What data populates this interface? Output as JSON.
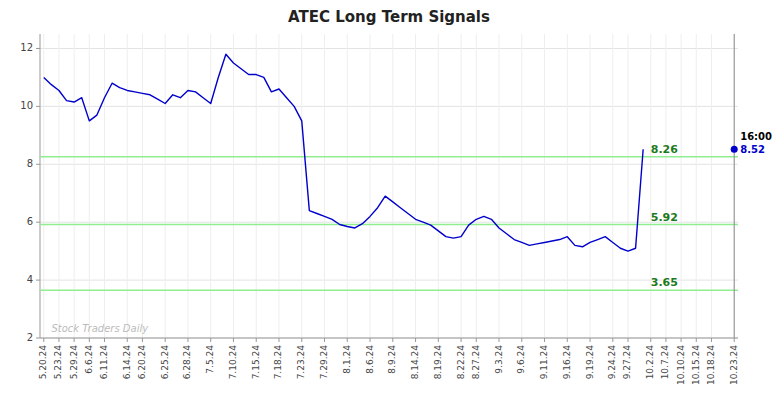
{
  "chart_data": {
    "type": "line",
    "title": "ATEC Long Term Signals",
    "categories": [
      "5.20.24",
      null,
      "5.23.24",
      null,
      "5.29.24",
      null,
      "6.6.24",
      null,
      "6.11.24",
      null,
      null,
      "6.14.24",
      null,
      "6.20.24",
      null,
      null,
      "6.25.24",
      null,
      null,
      "6.28.24",
      null,
      null,
      "7.5.24",
      null,
      null,
      "7.10.24",
      null,
      null,
      "7.15.24",
      null,
      null,
      "7.18.24",
      null,
      null,
      "7.23.24",
      null,
      null,
      "7.29.24",
      null,
      null,
      "8.1.24",
      null,
      null,
      "8.6.24",
      null,
      null,
      "8.9.24",
      null,
      null,
      "8.14.24",
      null,
      null,
      "8.19.24",
      null,
      null,
      "8.22.24",
      null,
      "8.27.24",
      null,
      null,
      "9.3.24",
      null,
      null,
      "9.6.24",
      null,
      null,
      "9.11.24",
      null,
      null,
      "9.16.24",
      null,
      null,
      "9.19.24",
      null,
      null,
      "9.24.24",
      null,
      "9.27.24",
      null,
      null,
      "10.2.24",
      null,
      "10.7.24",
      null,
      "10.10.24",
      null,
      "10.15.24",
      null,
      "10.18.24",
      null,
      null,
      "10.23.24"
    ],
    "series": [
      {
        "color": "#0000cc",
        "values": [
          11.0,
          10.75,
          10.55,
          10.2,
          10.15,
          10.3,
          9.5,
          9.7,
          10.3,
          10.8,
          10.65,
          10.55,
          10.5,
          10.45,
          10.4,
          10.25,
          10.1,
          10.4,
          10.3,
          10.55,
          10.5,
          10.3,
          10.1,
          11.0,
          11.8,
          11.5,
          11.3,
          11.1,
          11.1,
          11.0,
          10.5,
          10.6,
          10.3,
          10.0,
          9.5,
          6.4,
          6.3,
          6.2,
          6.1,
          5.92,
          5.85,
          5.8,
          5.95,
          6.2,
          6.5,
          6.9,
          6.7,
          6.5,
          6.3,
          6.1,
          6.0,
          5.9,
          5.7,
          5.5,
          5.45,
          5.5,
          5.9,
          6.1,
          6.2,
          6.1,
          5.8,
          5.6,
          5.4,
          5.3,
          5.2,
          5.25,
          5.3,
          5.35,
          5.4,
          5.5,
          5.2,
          5.15,
          5.3,
          5.4,
          5.5,
          5.3,
          5.1,
          5.0,
          5.1,
          8.52,
          null,
          null,
          null,
          null,
          null,
          null,
          null,
          null,
          null,
          null,
          null,
          null
        ]
      },
      {
        "type": "scatter",
        "marker": "circle",
        "color": "#0000cc",
        "data_labels": true,
        "values": [
          null,
          null,
          null,
          null,
          null,
          null,
          null,
          null,
          null,
          null,
          null,
          null,
          null,
          null,
          null,
          null,
          null,
          null,
          null,
          null,
          null,
          null,
          null,
          null,
          null,
          null,
          null,
          null,
          null,
          null,
          null,
          null,
          null,
          null,
          null,
          null,
          null,
          null,
          null,
          null,
          null,
          null,
          null,
          null,
          null,
          null,
          null,
          null,
          null,
          null,
          null,
          null,
          null,
          null,
          null,
          null,
          null,
          null,
          null,
          null,
          null,
          null,
          null,
          null,
          null,
          null,
          null,
          null,
          null,
          null,
          null,
          null,
          null,
          null,
          null,
          null,
          null,
          null,
          null,
          null,
          null,
          null,
          null,
          null,
          null,
          null,
          null,
          null,
          null,
          null,
          null,
          8.52
        ]
      }
    ],
    "hlines": {
      "values": [
        8.26,
        5.92,
        3.65
      ],
      "color": "#90EE90"
    },
    "vline": {
      "category": "10.23.24",
      "color": "#888888"
    },
    "annotations": [
      {
        "text": "16:00"
      }
    ],
    "watermark": {
      "text": "Stock Traders Daily",
      "color": "#bbbbbb"
    },
    "ylim": [
      2,
      12.5
    ],
    "yticks": [
      2,
      4,
      6,
      8,
      10,
      12
    ],
    "grid": true
  }
}
